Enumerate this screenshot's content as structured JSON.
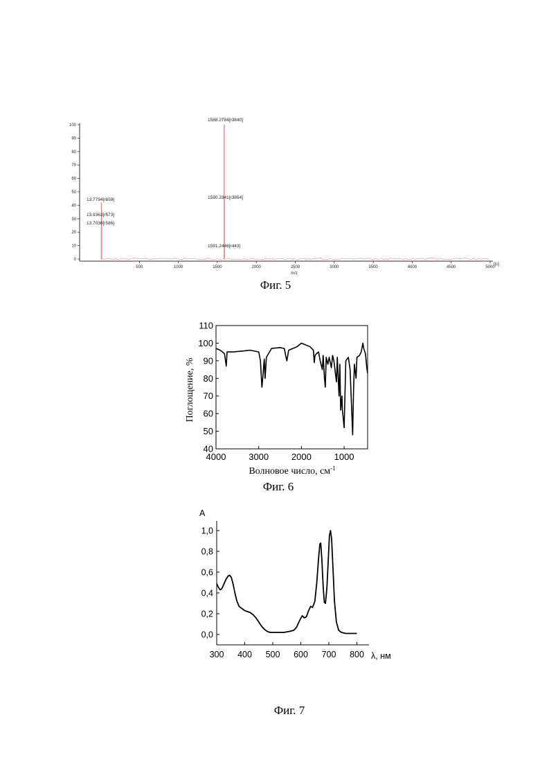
{
  "chart_data": [
    {
      "type": "bar",
      "caption": "Фиг. 5",
      "xlabel": "m/z",
      "x_corner_label": "I[c]",
      "xlim": [
        0,
        5050
      ],
      "ylim": [
        0,
        100
      ],
      "xticks": [
        "500",
        "1000",
        "1500",
        "2000",
        "2500",
        "3000",
        "3500",
        "4000",
        "4500",
        "5000"
      ],
      "yticks": [
        "0",
        "10",
        "20",
        "30",
        "40",
        "50",
        "60",
        "70",
        "80",
        "90",
        "100"
      ],
      "color": "#e8868a",
      "peaks": [
        {
          "mz": 13.7794,
          "intensity": 42,
          "label": "13.7794[r659]"
        },
        {
          "mz": 13.9363,
          "intensity": 31,
          "label": "13.9363[r573]"
        },
        {
          "mz": 13.7036,
          "intensity": 25,
          "label": "13.7036[r586]"
        },
        {
          "mz": 1588.2784,
          "intensity": 100,
          "label": "1588.2784[r3840]"
        },
        {
          "mz": 1590.3341,
          "intensity": 47,
          "label": "1590.3341[r3854]"
        },
        {
          "mz": 1591.2446,
          "intensity": 6,
          "label": "1591.2446[r443]"
        }
      ]
    },
    {
      "type": "line",
      "caption": "Фиг. 6",
      "xlabel": "Волновое число, см",
      "xlabel_sup": "-1",
      "ylabel": "Поглощение, %",
      "xlim": [
        4000,
        450
      ],
      "ylim": [
        40,
        110
      ],
      "xticks": [
        "4000",
        "3000",
        "2000",
        "1000"
      ],
      "yticks": [
        "40",
        "50",
        "60",
        "70",
        "80",
        "90",
        "100",
        "110"
      ],
      "points": [
        [
          4000,
          97
        ],
        [
          3900,
          96
        ],
        [
          3850,
          95
        ],
        [
          3800,
          94
        ],
        [
          3760,
          87
        ],
        [
          3740,
          95
        ],
        [
          3600,
          95
        ],
        [
          3400,
          95.5
        ],
        [
          3200,
          96
        ],
        [
          3000,
          95
        ],
        [
          2960,
          90
        ],
        [
          2925,
          75
        ],
        [
          2900,
          82
        ],
        [
          2870,
          91
        ],
        [
          2850,
          80
        ],
        [
          2820,
          92
        ],
        [
          2700,
          97
        ],
        [
          2500,
          97.5
        ],
        [
          2400,
          97
        ],
        [
          2370,
          93
        ],
        [
          2340,
          90
        ],
        [
          2300,
          96
        ],
        [
          2100,
          98
        ],
        [
          2000,
          100
        ],
        [
          1900,
          99
        ],
        [
          1800,
          98
        ],
        [
          1720,
          96
        ],
        [
          1700,
          89
        ],
        [
          1680,
          93
        ],
        [
          1650,
          94
        ],
        [
          1600,
          95
        ],
        [
          1560,
          90
        ],
        [
          1510,
          85
        ],
        [
          1490,
          93
        ],
        [
          1460,
          80
        ],
        [
          1440,
          75
        ],
        [
          1420,
          92
        ],
        [
          1380,
          88
        ],
        [
          1350,
          92
        ],
        [
          1300,
          86
        ],
        [
          1270,
          93
        ],
        [
          1240,
          90
        ],
        [
          1180,
          78
        ],
        [
          1160,
          92
        ],
        [
          1120,
          70
        ],
        [
          1100,
          88
        ],
        [
          1080,
          62
        ],
        [
          1050,
          70
        ],
        [
          1040,
          62
        ],
        [
          1000,
          52
        ],
        [
          960,
          90
        ],
        [
          900,
          92
        ],
        [
          860,
          85
        ],
        [
          820,
          60
        ],
        [
          800,
          48
        ],
        [
          780,
          72
        ],
        [
          760,
          88
        ],
        [
          720,
          80
        ],
        [
          700,
          92
        ],
        [
          640,
          93
        ],
        [
          600,
          95
        ],
        [
          560,
          100
        ],
        [
          540,
          97
        ],
        [
          500,
          94
        ],
        [
          470,
          86
        ],
        [
          450,
          83
        ]
      ]
    },
    {
      "type": "line",
      "caption": "Фиг. 7",
      "ylabel": "A",
      "xlabel": "λ, нм",
      "xlim": [
        300,
        850
      ],
      "ylim": [
        -0.1,
        1.08
      ],
      "xticks": [
        "300",
        "400",
        "500",
        "600",
        "700",
        "800"
      ],
      "yticks": [
        "0,0",
        "0,2",
        "0,4",
        "0,6",
        "0,8",
        "1,0"
      ],
      "points": [
        [
          300,
          0.49
        ],
        [
          305,
          0.46
        ],
        [
          312,
          0.43
        ],
        [
          318,
          0.44
        ],
        [
          325,
          0.48
        ],
        [
          333,
          0.53
        ],
        [
          340,
          0.56
        ],
        [
          346,
          0.57
        ],
        [
          352,
          0.55
        ],
        [
          358,
          0.49
        ],
        [
          365,
          0.4
        ],
        [
          372,
          0.32
        ],
        [
          380,
          0.27
        ],
        [
          390,
          0.25
        ],
        [
          400,
          0.23
        ],
        [
          410,
          0.22
        ],
        [
          420,
          0.21
        ],
        [
          430,
          0.19
        ],
        [
          440,
          0.16
        ],
        [
          450,
          0.12
        ],
        [
          460,
          0.08
        ],
        [
          470,
          0.05
        ],
        [
          480,
          0.03
        ],
        [
          490,
          0.02
        ],
        [
          500,
          0.02
        ],
        [
          520,
          0.02
        ],
        [
          540,
          0.02
        ],
        [
          560,
          0.03
        ],
        [
          575,
          0.04
        ],
        [
          585,
          0.07
        ],
        [
          595,
          0.13
        ],
        [
          605,
          0.18
        ],
        [
          612,
          0.16
        ],
        [
          620,
          0.17
        ],
        [
          628,
          0.23
        ],
        [
          635,
          0.27
        ],
        [
          642,
          0.26
        ],
        [
          650,
          0.32
        ],
        [
          657,
          0.5
        ],
        [
          663,
          0.72
        ],
        [
          668,
          0.87
        ],
        [
          671,
          0.88
        ],
        [
          675,
          0.72
        ],
        [
          680,
          0.45
        ],
        [
          684,
          0.31
        ],
        [
          688,
          0.3
        ],
        [
          693,
          0.45
        ],
        [
          698,
          0.72
        ],
        [
          702,
          0.95
        ],
        [
          706,
          1.0
        ],
        [
          710,
          0.92
        ],
        [
          715,
          0.62
        ],
        [
          720,
          0.32
        ],
        [
          727,
          0.12
        ],
        [
          735,
          0.04
        ],
        [
          745,
          0.02
        ],
        [
          760,
          0.01
        ],
        [
          780,
          0.01
        ],
        [
          800,
          0.01
        ]
      ]
    }
  ]
}
